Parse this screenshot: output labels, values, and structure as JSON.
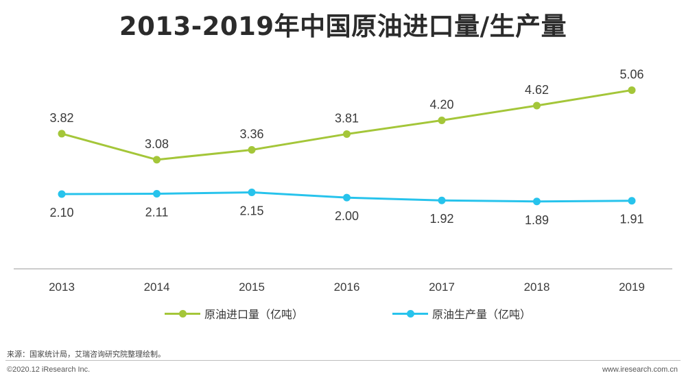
{
  "title": "2013-2019年中国原油进口量/生产量",
  "chart_data": {
    "type": "line",
    "title": "2013-2019年中国原油进口量/生产量",
    "x": [
      "2013",
      "2014",
      "2015",
      "2016",
      "2017",
      "2018",
      "2019"
    ],
    "series": [
      {
        "name": "原油进口量（亿吨）",
        "color": "#a4c639",
        "values": [
          3.82,
          3.08,
          3.36,
          3.81,
          4.2,
          4.62,
          5.06
        ],
        "labels": [
          "3.82",
          "3.08",
          "3.36",
          "3.81",
          "4.20",
          "4.62",
          "5.06"
        ]
      },
      {
        "name": "原油生产量（亿吨）",
        "color": "#27c3ec",
        "values": [
          2.1,
          2.11,
          2.15,
          2.0,
          1.92,
          1.89,
          1.91
        ],
        "labels": [
          "2.10",
          "2.11",
          "2.15",
          "2.00",
          "1.92",
          "1.89",
          "1.91"
        ]
      }
    ],
    "grid": false,
    "legend": "bottom"
  },
  "source": "来源：国家统计局，艾瑞咨询研究院整理绘制。",
  "copyright": "©2020.12 iResearch Inc.",
  "website": "www.iresearch.com.cn"
}
